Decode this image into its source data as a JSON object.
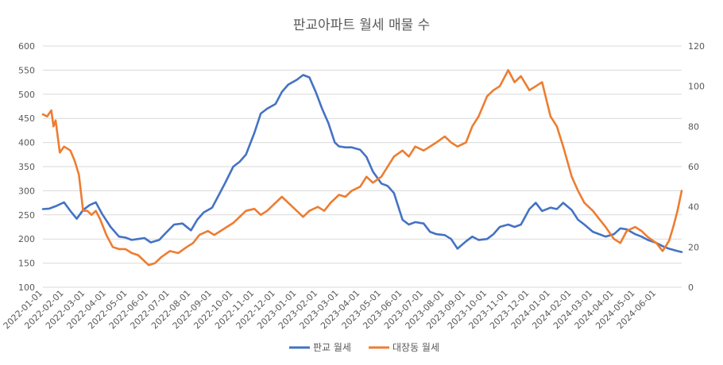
{
  "chart_data": {
    "type": "line",
    "title": "판교아파트 월세 매물 수",
    "xlabel": "",
    "ylabel": "",
    "y_left_range": [
      100,
      600
    ],
    "y_right_range": [
      0,
      120
    ],
    "y_left_ticks": [
      "100",
      "150",
      "200",
      "250",
      "300",
      "350",
      "400",
      "450",
      "500",
      "550",
      "600"
    ],
    "y_right_ticks": [
      "0",
      "20",
      "40",
      "60",
      "80",
      "100",
      "120"
    ],
    "x_ticks": [
      "2022-01-01",
      "2022-02-01",
      "2022-03-01",
      "2022-04-01",
      "2022-05-01",
      "2022-06-01",
      "2022-07-01",
      "2022-08-01",
      "2022-09-01",
      "2022-10-01",
      "2022-11-01",
      "2022-12-01",
      "2023-01-01",
      "2023-02-01",
      "2023-03-01",
      "2023-04-01",
      "2023-05-01",
      "2023-06-01",
      "2023-07-01",
      "2023-08-01",
      "2023-09-01",
      "2023-10-01",
      "2023-11-01",
      "2023-12-01",
      "2024-01-01",
      "2024-02-01",
      "2024-03-01",
      "2024-04-01",
      "2024-05-01",
      "2024-06-01"
    ],
    "x_range_months": [
      0,
      30.2
    ],
    "legend_position": "bottom",
    "series": [
      {
        "name": "판교 월세",
        "axis": "left",
        "color": "#4472c4",
        "x_months": [
          0,
          0.3,
          0.6,
          1.0,
          1.3,
          1.6,
          1.9,
          2.2,
          2.5,
          2.8,
          3.2,
          3.6,
          3.9,
          4.2,
          4.5,
          4.8,
          5.1,
          5.5,
          5.8,
          6.2,
          6.6,
          7.0,
          7.3,
          7.6,
          8.0,
          8.3,
          8.6,
          9.0,
          9.3,
          9.6,
          10.0,
          10.3,
          10.6,
          11.0,
          11.3,
          11.6,
          12.0,
          12.3,
          12.6,
          12.9,
          13.2,
          13.5,
          13.8,
          14.0,
          14.3,
          14.6,
          15.0,
          15.3,
          15.6,
          16.0,
          16.3,
          16.6,
          17.0,
          17.3,
          17.6,
          18.0,
          18.3,
          18.6,
          19.0,
          19.3,
          19.6,
          20.0,
          20.3,
          20.6,
          21.0,
          21.3,
          21.6,
          22.0,
          22.3,
          22.6,
          23.0,
          23.3,
          23.6,
          24.0,
          24.3,
          24.6,
          25.0,
          25.3,
          25.6,
          26.0,
          26.3,
          26.6,
          27.0,
          27.3,
          27.6,
          28.0,
          28.3,
          28.6,
          29.0,
          29.3,
          29.6,
          30.0,
          30.2
        ],
        "values": [
          262,
          263,
          268,
          276,
          258,
          242,
          260,
          270,
          276,
          252,
          225,
          205,
          203,
          198,
          200,
          202,
          193,
          198,
          212,
          230,
          232,
          218,
          240,
          255,
          265,
          290,
          315,
          350,
          360,
          375,
          420,
          460,
          470,
          480,
          505,
          520,
          530,
          540,
          535,
          505,
          470,
          440,
          400,
          392,
          390,
          390,
          385,
          370,
          340,
          315,
          310,
          295,
          240,
          230,
          235,
          232,
          215,
          210,
          208,
          200,
          180,
          195,
          205,
          198,
          200,
          210,
          225,
          230,
          225,
          230,
          262,
          275,
          258,
          265,
          262,
          275,
          260,
          240,
          230,
          215,
          210,
          205,
          210,
          222,
          220,
          210,
          205,
          198,
          192,
          185,
          180,
          175,
          173
        ]
      },
      {
        "name": "대장동 월세",
        "axis": "right",
        "color": "#ed7d31",
        "x_months": [
          0,
          0.2,
          0.4,
          0.5,
          0.6,
          0.8,
          1.0,
          1.3,
          1.5,
          1.7,
          1.9,
          2.1,
          2.3,
          2.5,
          2.7,
          3.0,
          3.3,
          3.6,
          3.9,
          4.2,
          4.5,
          4.8,
          5.0,
          5.3,
          5.6,
          6.0,
          6.4,
          6.8,
          7.1,
          7.4,
          7.8,
          8.1,
          8.4,
          8.7,
          9.0,
          9.3,
          9.6,
          10.0,
          10.3,
          10.6,
          11.0,
          11.3,
          11.6,
          12.0,
          12.3,
          12.6,
          13.0,
          13.3,
          13.6,
          14.0,
          14.3,
          14.6,
          15.0,
          15.3,
          15.6,
          16.0,
          16.3,
          16.6,
          17.0,
          17.3,
          17.6,
          18.0,
          18.3,
          18.6,
          19.0,
          19.3,
          19.6,
          20.0,
          20.3,
          20.6,
          21.0,
          21.3,
          21.6,
          22.0,
          22.3,
          22.6,
          23.0,
          23.3,
          23.6,
          24.0,
          24.3,
          24.6,
          25.0,
          25.3,
          25.6,
          26.0,
          26.3,
          26.6,
          27.0,
          27.3,
          27.6,
          28.0,
          28.3,
          28.6,
          29.0,
          29.3,
          29.6,
          29.8,
          30.0,
          30.2
        ],
        "values": [
          86,
          85,
          88,
          80,
          83,
          67,
          70,
          68,
          63,
          56,
          38,
          38,
          36,
          38,
          34,
          26,
          20,
          19,
          19,
          17,
          16,
          13,
          11,
          12,
          15,
          18,
          17,
          20,
          22,
          26,
          28,
          26,
          28,
          30,
          32,
          35,
          38,
          39,
          36,
          38,
          42,
          45,
          42,
          38,
          35,
          38,
          40,
          38,
          42,
          46,
          45,
          48,
          50,
          55,
          52,
          55,
          60,
          65,
          68,
          65,
          70,
          68,
          70,
          72,
          75,
          72,
          70,
          72,
          80,
          85,
          95,
          98,
          100,
          108,
          102,
          105,
          98,
          100,
          102,
          85,
          80,
          70,
          55,
          48,
          42,
          38,
          34,
          30,
          24,
          22,
          28,
          30,
          28,
          25,
          22,
          18,
          23,
          30,
          38,
          48
        ]
      }
    ]
  }
}
